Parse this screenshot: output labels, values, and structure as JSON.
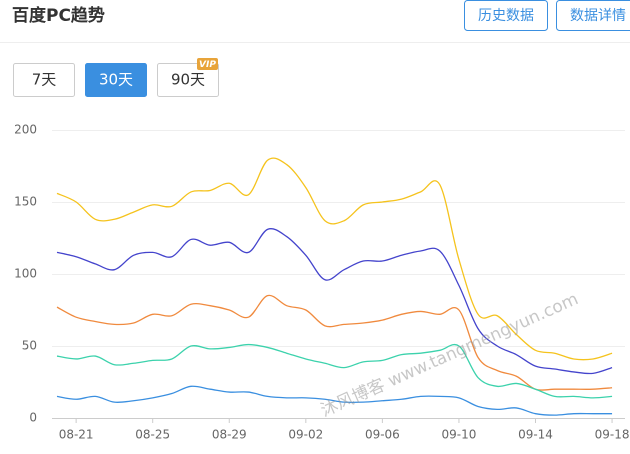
{
  "header": {
    "title": "百度PC趋势",
    "buttons": [
      "历史数据",
      "数据详情"
    ]
  },
  "tabs": {
    "items": [
      "7天",
      "30天",
      "90天"
    ],
    "active": 1,
    "badge": "VIP"
  },
  "watermark": "沐风博客 www.tangmengyun.com",
  "chart_data": {
    "type": "line",
    "categories": [
      null,
      "08-21",
      null,
      null,
      null,
      "08-25",
      null,
      null,
      null,
      "08-29",
      null,
      null,
      null,
      "09-02",
      null,
      null,
      null,
      "09-06",
      null,
      null,
      null,
      "09-10",
      null,
      null,
      null,
      "09-14",
      null,
      null,
      null,
      "09-18"
    ],
    "series": [
      {
        "color": "#f5c31d",
        "values": [
          156,
          150,
          138,
          138,
          143,
          148,
          147,
          157,
          158,
          163,
          155,
          179,
          176,
          160,
          137,
          137,
          148,
          150,
          152,
          157,
          162,
          110,
          72,
          71,
          58,
          47,
          45,
          41,
          41,
          45
        ]
      },
      {
        "color": "#4444cc",
        "values": [
          115,
          112,
          107,
          103,
          113,
          115,
          112,
          124,
          120,
          122,
          115,
          131,
          126,
          113,
          96,
          103,
          109,
          109,
          113,
          116,
          116,
          92,
          62,
          50,
          44,
          36,
          34,
          32,
          31,
          35
        ]
      },
      {
        "color": "#f08a3e",
        "values": [
          77,
          70,
          67,
          65,
          66,
          72,
          71,
          79,
          78,
          75,
          70,
          85,
          78,
          75,
          64,
          65,
          66,
          68,
          72,
          74,
          72,
          75,
          42,
          33,
          29,
          20,
          20,
          20,
          20,
          21
        ]
      },
      {
        "color": "#3cd2ac",
        "values": [
          43,
          41,
          43,
          37,
          38,
          40,
          41,
          50,
          48,
          49,
          51,
          49,
          45,
          41,
          38,
          35,
          39,
          40,
          44,
          45,
          47,
          50,
          28,
          22,
          24,
          20,
          15,
          15,
          14,
          15
        ]
      },
      {
        "color": "#3a8fe0",
        "values": [
          15,
          13,
          15,
          11,
          12,
          14,
          17,
          22,
          20,
          18,
          18,
          15,
          14,
          14,
          13,
          11,
          11,
          12,
          13,
          15,
          15,
          14,
          8,
          6,
          7,
          3,
          2,
          3,
          3,
          3
        ]
      }
    ],
    "ylim": [
      0,
      200
    ],
    "yticks": [
      0,
      50,
      100,
      150,
      200
    ],
    "grid": true
  }
}
